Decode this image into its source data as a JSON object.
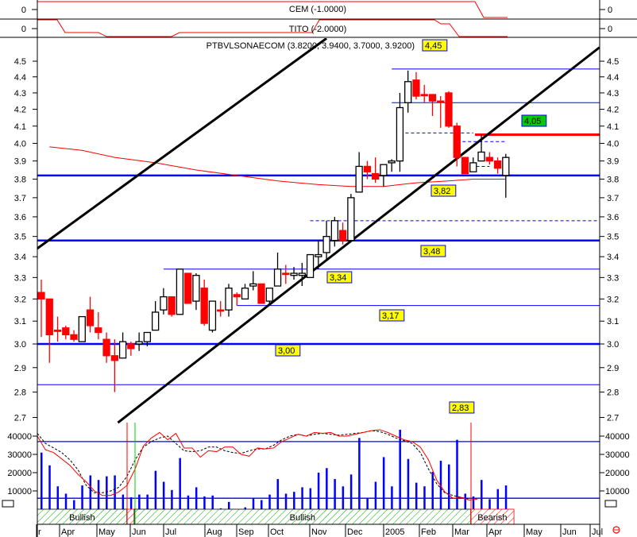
{
  "chart_data": {
    "type": "candlestick",
    "title": "PTBVLSONAECOM (3.8200, 3.9400, 3.7000, 3.9200)",
    "y_scale": "log",
    "ylim": [
      2.7,
      4.55
    ],
    "y_ticks": [
      "2.7",
      "2.8",
      "2.9",
      "3.0",
      "3.1",
      "3.2",
      "3.3",
      "3.4",
      "3.5",
      "3.6",
      "3.7",
      "3.8",
      "3.9",
      "4.0",
      "4.1",
      "4.2",
      "4.3",
      "4.4",
      "4.5"
    ],
    "x_tick_labels": [
      "r",
      "Apr",
      "May",
      "Jun",
      "Jul",
      "Aug",
      "Sep",
      "Oct",
      "Nov",
      "Dec",
      "2005",
      "Feb",
      "Mar",
      "Apr",
      "May",
      "Jun",
      "Jul"
    ],
    "ohlc": [
      [
        3.23,
        3.29,
        3.03,
        3.2
      ],
      [
        3.2,
        3.2,
        2.92,
        3.04
      ],
      [
        3.06,
        3.12,
        3.01,
        3.06
      ],
      [
        3.07,
        3.08,
        3.02,
        3.04
      ],
      [
        3.04,
        3.06,
        3.01,
        3.02
      ],
      [
        3.01,
        3.12,
        3.01,
        3.12
      ],
      [
        3.15,
        3.21,
        3.05,
        3.08
      ],
      [
        3.07,
        3.14,
        3.02,
        3.05
      ],
      [
        3.02,
        3.05,
        2.92,
        2.95
      ],
      [
        2.95,
        3.02,
        2.8,
        2.93
      ],
      [
        2.94,
        3.05,
        2.94,
        3.01
      ],
      [
        3.0,
        3.01,
        2.95,
        2.98
      ],
      [
        3.0,
        3.05,
        2.97,
        3.01
      ],
      [
        3.01,
        3.05,
        2.99,
        3.05
      ],
      [
        3.06,
        3.19,
        3.06,
        3.14
      ],
      [
        3.15,
        3.25,
        3.13,
        3.21
      ],
      [
        3.21,
        3.21,
        3.12,
        3.13
      ],
      [
        3.13,
        3.34,
        3.13,
        3.34
      ],
      [
        3.32,
        3.32,
        3.18,
        3.18
      ],
      [
        3.19,
        3.32,
        3.15,
        3.31
      ],
      [
        3.25,
        3.29,
        3.08,
        3.09
      ],
      [
        3.06,
        3.19,
        3.05,
        3.19
      ],
      [
        3.15,
        3.19,
        3.12,
        3.15
      ],
      [
        3.15,
        3.27,
        3.12,
        3.25
      ],
      [
        3.22,
        3.23,
        3.17,
        3.21
      ],
      [
        3.2,
        3.27,
        3.2,
        3.25
      ],
      [
        3.26,
        3.33,
        3.24,
        3.27
      ],
      [
        3.27,
        3.27,
        3.18,
        3.18
      ],
      [
        3.19,
        3.25,
        3.17,
        3.25
      ],
      [
        3.26,
        3.42,
        3.26,
        3.34
      ],
      [
        3.32,
        3.36,
        3.27,
        3.32
      ],
      [
        3.31,
        3.35,
        3.29,
        3.32
      ],
      [
        3.31,
        3.37,
        3.26,
        3.32
      ],
      [
        3.3,
        3.41,
        3.3,
        3.41
      ],
      [
        3.4,
        3.48,
        3.34,
        3.41
      ],
      [
        3.42,
        3.58,
        3.38,
        3.5
      ],
      [
        3.48,
        3.6,
        3.45,
        3.58
      ],
      [
        3.53,
        3.57,
        3.46,
        3.48
      ],
      [
        3.48,
        3.72,
        3.48,
        3.7
      ],
      [
        3.73,
        3.95,
        3.73,
        3.87
      ],
      [
        3.87,
        3.9,
        3.8,
        3.84
      ],
      [
        3.83,
        3.92,
        3.78,
        3.8
      ],
      [
        3.82,
        3.88,
        3.76,
        3.88
      ],
      [
        3.89,
        3.91,
        3.84,
        3.9
      ],
      [
        3.9,
        4.3,
        3.84,
        4.21
      ],
      [
        4.24,
        4.44,
        4.18,
        4.37
      ],
      [
        4.38,
        4.43,
        4.26,
        4.28
      ],
      [
        4.29,
        4.35,
        4.24,
        4.29
      ],
      [
        4.29,
        4.29,
        4.16,
        4.25
      ],
      [
        4.25,
        4.28,
        4.09,
        4.25
      ],
      [
        4.3,
        4.31,
        4.09,
        4.1
      ],
      [
        4.1,
        4.12,
        3.87,
        3.92
      ],
      [
        3.92,
        3.92,
        3.83,
        3.83
      ],
      [
        3.84,
        3.92,
        3.84,
        3.89
      ],
      [
        3.9,
        4.05,
        3.9,
        3.95
      ],
      [
        3.92,
        3.95,
        3.88,
        3.9
      ],
      [
        3.9,
        3.92,
        3.83,
        3.86
      ],
      [
        3.82,
        3.94,
        3.7,
        3.92
      ]
    ],
    "moving_average": [
      [
        1,
        3.98
      ],
      [
        5,
        3.96
      ],
      [
        9,
        3.92
      ],
      [
        14,
        3.89
      ],
      [
        19,
        3.85
      ],
      [
        24,
        3.82
      ],
      [
        29,
        3.79
      ],
      [
        34,
        3.77
      ],
      [
        38,
        3.76
      ],
      [
        42,
        3.76
      ],
      [
        46,
        3.78
      ],
      [
        50,
        3.79
      ],
      [
        53,
        3.8
      ],
      [
        57,
        3.8
      ]
    ],
    "trend_lines": [
      {
        "from": [
          -0.5,
          3.44
        ],
        "to": [
          35,
          4.65
        ]
      },
      {
        "from": [
          9.4,
          2.68
        ],
        "to": [
          68.5,
          4.59
        ]
      }
    ],
    "levels": [
      {
        "price": 4.45,
        "label": "4,45",
        "from_bar": 43,
        "style": "thin"
      },
      {
        "price": 4.24,
        "label": "",
        "from_bar": 43,
        "style": "thin"
      },
      {
        "price": 3.82,
        "label": "3,82",
        "from_bar": -1,
        "style": "thick"
      },
      {
        "price": 3.58,
        "label": "",
        "from_bar": 33,
        "style": "dashed"
      },
      {
        "price": 3.48,
        "label": "3,48",
        "from_bar": -1,
        "style": "thick"
      },
      {
        "price": 3.34,
        "label": "3,34",
        "from_bar": 15,
        "style": "thin"
      },
      {
        "price": 3.17,
        "label": "3,17",
        "from_bar": 24,
        "style": "thin"
      },
      {
        "price": 3.0,
        "label": "3,00",
        "from_bar": -1,
        "style": "thick"
      },
      {
        "price": 2.83,
        "label": "2,83",
        "from_bar": -1,
        "style": "thin"
      }
    ],
    "resistance": {
      "price": 4.05,
      "label": "4,05",
      "from_bar": 54,
      "color": "#ff0000"
    },
    "dashed_segments": [
      {
        "price": 4.06,
        "from_bar": 44,
        "to_bar": 53
      },
      {
        "price": 4.01,
        "from_bar": 51,
        "to_bar": 57
      },
      {
        "price": 3.87,
        "from_bar": 52,
        "to_bar": 55
      }
    ],
    "volume": {
      "y_ticks": [
        "10000",
        "20000",
        "30000",
        "40000"
      ],
      "values": [
        31000,
        24000,
        12500,
        8500,
        5000,
        13000,
        18500,
        16000,
        18000,
        18500,
        8000,
        6500,
        8000,
        8000,
        21000,
        15000,
        10500,
        28000,
        7500,
        12000,
        7000,
        7500,
        500,
        4000,
        0,
        1000,
        6000,
        5000,
        8000,
        16500,
        8500,
        9500,
        12000,
        11500,
        20000,
        22500,
        16500,
        12500,
        19000,
        39000,
        6000,
        15000,
        28500,
        12500,
        43500,
        27500,
        14500,
        12500,
        20500,
        26500,
        24500,
        38000,
        8500,
        7000,
        16000,
        5500,
        11000,
        13000
      ],
      "ma_fast": [
        40000,
        32500,
        31000,
        27500,
        24000,
        19000,
        15000,
        10000,
        7500,
        7500,
        9500,
        13000,
        22000,
        34500,
        39000,
        42000,
        38000,
        41500,
        33500,
        33500,
        28500,
        32000,
        31500,
        34000,
        34000,
        30000,
        29000,
        33500,
        33000,
        33500,
        37000,
        39000,
        41000,
        40000,
        42000,
        41500,
        42000,
        40000,
        40000,
        41000,
        42000,
        43000,
        43500,
        42000,
        40000,
        38000,
        37000,
        34000,
        27000,
        16000,
        9500,
        6000,
        6500,
        5000,
        5500
      ],
      "ma_slow": [
        41500,
        36000,
        33500,
        31000,
        27000,
        21500,
        13000,
        9000,
        9000,
        10000,
        12000,
        18000,
        27000,
        34000,
        37000,
        39000,
        40000,
        36000,
        32000,
        31500,
        32000,
        34000,
        34000,
        32000,
        31000,
        30500,
        32000,
        33000,
        33000,
        35000,
        38000,
        40000,
        41000,
        40000,
        41000,
        41500,
        41000,
        40500,
        41000,
        41500,
        42000,
        43000,
        42500,
        41000,
        39000,
        37500,
        36000,
        31000,
        22000,
        14000,
        9000,
        7500,
        6500,
        5500
      ],
      "levels": [
        37000,
        6000
      ]
    },
    "signals": [
      {
        "label": "Bullish",
        "from_bar": -0.5,
        "to_bar": 10.5,
        "color": "green"
      },
      {
        "label": "",
        "from_bar": 10.5,
        "to_bar": 11.4,
        "color": "red"
      },
      {
        "label": "Bullish",
        "from_bar": 11.4,
        "to_bar": 52.7,
        "color": "green"
      },
      {
        "label": "Bearish",
        "from_bar": 52.7,
        "to_bar": 58,
        "color": "red"
      }
    ],
    "indicators": [
      {
        "name": "CEM (-1.0000)",
        "axis_label": "0"
      },
      {
        "name": "TITO (-2.0000)",
        "axis_label": "0"
      }
    ]
  },
  "colors": {
    "up": "#ffffff",
    "down": "#ff0000",
    "level": "#0000ff",
    "label_bg": "#ffff00",
    "resistance_bg": "#00cc00"
  }
}
